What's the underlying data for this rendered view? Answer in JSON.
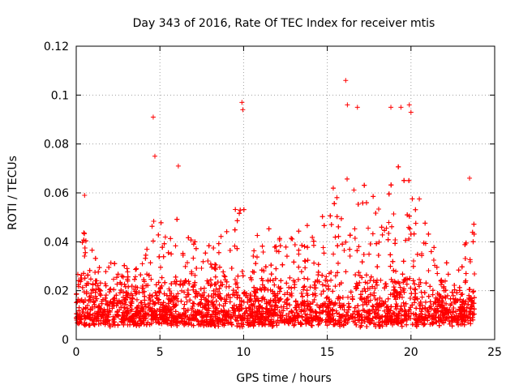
{
  "chart_data": {
    "type": "scatter",
    "title": "Day 343 of 2016, Rate Of TEC Index for receiver mtis",
    "xlabel": "GPS time / hours",
    "ylabel": "ROTI / TECUs",
    "xlim": [
      0,
      25
    ],
    "ylim": [
      0,
      0.12
    ],
    "x_ticks": [
      0,
      5,
      10,
      15,
      20,
      25
    ],
    "x_tick_labels": [
      "0",
      "5",
      "10",
      "15",
      "20",
      "25"
    ],
    "y_ticks": [
      0,
      0.02,
      0.04,
      0.06,
      0.08,
      0.1,
      0.12
    ],
    "y_tick_labels": [
      "0",
      "0.02",
      "0.04",
      "0.06",
      "0.08",
      "0.1",
      "0.12"
    ],
    "grid": true,
    "marker": "+",
    "color": "#ff0000",
    "x_range_of_points": [
      0,
      23.8
    ],
    "notable_points": [
      {
        "x": 0.5,
        "y": 0.059
      },
      {
        "x": 4.6,
        "y": 0.091
      },
      {
        "x": 4.7,
        "y": 0.075
      },
      {
        "x": 6.1,
        "y": 0.071
      },
      {
        "x": 9.9,
        "y": 0.097
      },
      {
        "x": 9.95,
        "y": 0.094
      },
      {
        "x": 16.1,
        "y": 0.106
      },
      {
        "x": 16.2,
        "y": 0.096
      },
      {
        "x": 16.8,
        "y": 0.095
      },
      {
        "x": 18.8,
        "y": 0.095
      },
      {
        "x": 19.4,
        "y": 0.095
      },
      {
        "x": 19.9,
        "y": 0.096
      },
      {
        "x": 20.0,
        "y": 0.093
      },
      {
        "x": 23.5,
        "y": 0.066
      }
    ],
    "activity_profile": {
      "hours": [
        0,
        0.5,
        1,
        1.5,
        2,
        3,
        4,
        4.5,
        5,
        6,
        7,
        8,
        9,
        9.5,
        10,
        10.5,
        11,
        12,
        13,
        14,
        15,
        16,
        17,
        18,
        19,
        19.5,
        20,
        20.5,
        21,
        22,
        22.5,
        23,
        23.5,
        23.8
      ],
      "typical_max": [
        0.035,
        0.045,
        0.035,
        0.03,
        0.032,
        0.03,
        0.032,
        0.06,
        0.045,
        0.05,
        0.04,
        0.035,
        0.045,
        0.055,
        0.06,
        0.045,
        0.04,
        0.05,
        0.045,
        0.045,
        0.055,
        0.065,
        0.06,
        0.06,
        0.065,
        0.07,
        0.08,
        0.06,
        0.045,
        0.035,
        0.025,
        0.03,
        0.05,
        0.045
      ]
    }
  }
}
